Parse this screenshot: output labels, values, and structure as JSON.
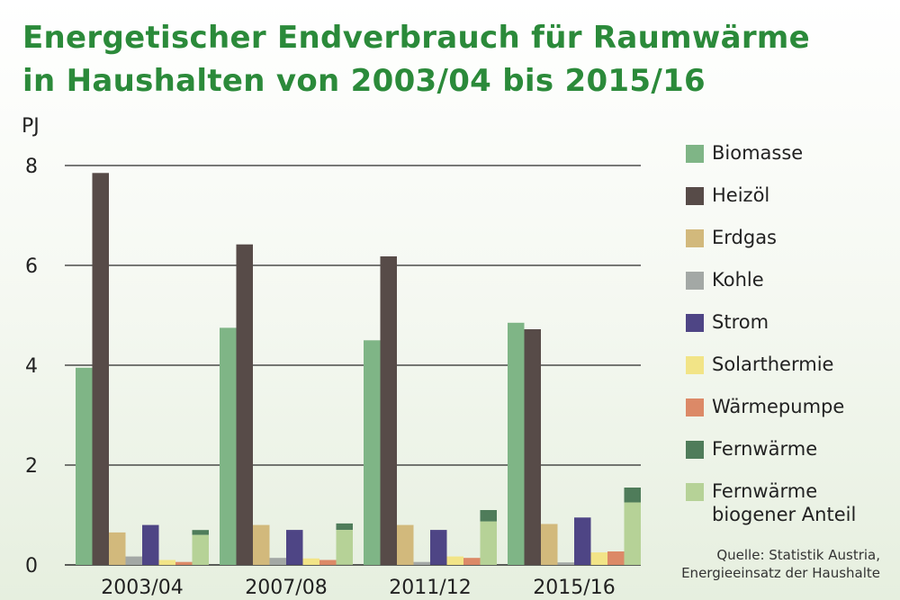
{
  "chart_data": {
    "type": "bar",
    "title_lines": [
      "Energetischer Endverbrauch für Raumwärme",
      "in Haushalten von 2003/04 bis 2015/16"
    ],
    "ylabel": "PJ",
    "ylim": [
      0,
      8
    ],
    "yticks": [
      0,
      2,
      4,
      6,
      8
    ],
    "grid": true,
    "legend_position": "right",
    "categories": [
      "2003/04",
      "2007/08",
      "2011/12",
      "2015/16"
    ],
    "series": [
      {
        "name": "Biomasse",
        "color": "#7fb586",
        "values": [
          3.95,
          4.75,
          4.5,
          4.85
        ]
      },
      {
        "name": "Heizöl",
        "color": "#574b48",
        "values": [
          7.85,
          6.42,
          6.18,
          4.72
        ]
      },
      {
        "name": "Erdgas",
        "color": "#d2b97c",
        "values": [
          0.65,
          0.8,
          0.8,
          0.82
        ]
      },
      {
        "name": "Kohle",
        "color": "#a3a8a5",
        "values": [
          0.17,
          0.14,
          0.06,
          0.05
        ]
      },
      {
        "name": "Strom",
        "color": "#4e4585",
        "values": [
          0.8,
          0.7,
          0.7,
          0.95
        ]
      },
      {
        "name": "Solarthermie",
        "color": "#f2e487",
        "values": [
          0.1,
          0.13,
          0.17,
          0.25
        ]
      },
      {
        "name": "Wärmepumpe",
        "color": "#dc8967",
        "values": [
          0.06,
          0.1,
          0.14,
          0.27
        ]
      },
      {
        "name": "Fernwärme",
        "color": "#4f7c5a",
        "values": [
          0.7,
          0.83,
          1.1,
          1.55
        ]
      },
      {
        "name": "Fernwärme biogener Anteil",
        "label_lines": [
          "Fernwärme",
          "biogener Anteil"
        ],
        "color": "#b6d297",
        "values": [
          0.6,
          0.7,
          0.87,
          1.25
        ]
      }
    ],
    "stacked_pairs": [
      [
        7,
        8
      ]
    ],
    "source_lines": [
      "Quelle: Statistik Austria,",
      "Energieeinsatz der Haushalte"
    ]
  }
}
